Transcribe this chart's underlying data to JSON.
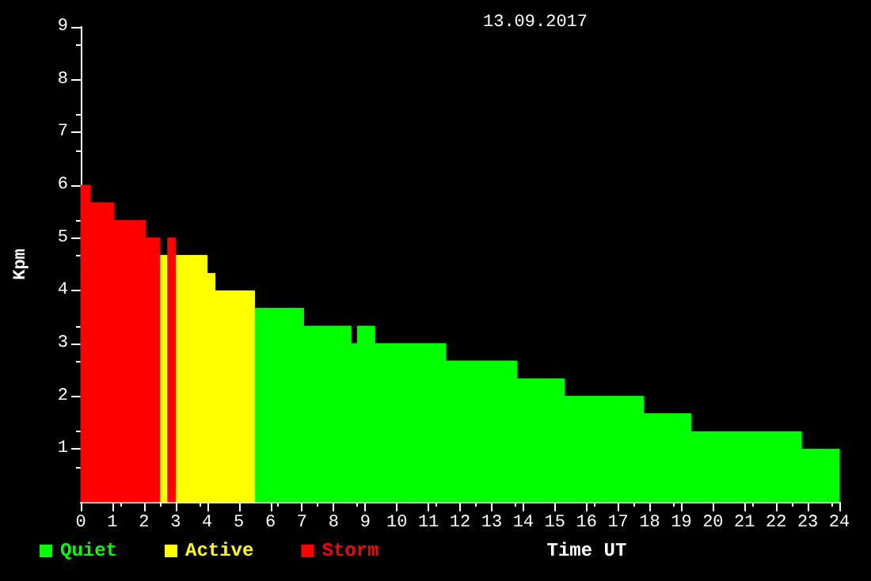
{
  "chart_data": {
    "type": "histogram",
    "title": "13.09.2017",
    "xlabel": "Time UT",
    "ylabel": "Kpm",
    "bins": [
      0,
      0.3,
      1.05,
      2.05,
      2.5,
      2.75,
      3,
      4,
      4.25,
      5.5,
      7.05,
      8.55,
      8.75,
      9.3,
      11.55,
      13.8,
      15.3,
      17.8,
      19.3,
      22.8,
      24
    ],
    "series": [
      {
        "name": "Quiet",
        "color": "#00ff00",
        "values": [
          null,
          null,
          null,
          null,
          null,
          null,
          null,
          null,
          null,
          3.67,
          3.33,
          3,
          3.33,
          3,
          2.67,
          2.33,
          2,
          1.67,
          1.33,
          1
        ]
      },
      {
        "name": "Active",
        "color": "#ffff00",
        "values": [
          null,
          null,
          null,
          null,
          4.67,
          null,
          4.67,
          4.33,
          4,
          null,
          null,
          null,
          null,
          null,
          null,
          null,
          null,
          null,
          null,
          null
        ]
      },
      {
        "name": "Storm",
        "color": "#ff0000",
        "values": [
          6,
          5.67,
          5.33,
          5,
          null,
          5,
          null,
          null,
          null,
          null,
          null,
          null,
          null,
          null,
          null,
          null,
          null,
          null,
          null,
          null
        ]
      }
    ],
    "xlim": [
      0,
      24
    ],
    "xticks": [
      0,
      1,
      2,
      3,
      4,
      5,
      6,
      7,
      8,
      9,
      10,
      11,
      12,
      13,
      14,
      15,
      16,
      17,
      18,
      19,
      20,
      21,
      22,
      23,
      24
    ],
    "ylim": [
      0,
      9
    ],
    "yticks": [
      1,
      2,
      3,
      4,
      5,
      6,
      7,
      8,
      9
    ],
    "grid": false,
    "legend": "bottom left"
  }
}
